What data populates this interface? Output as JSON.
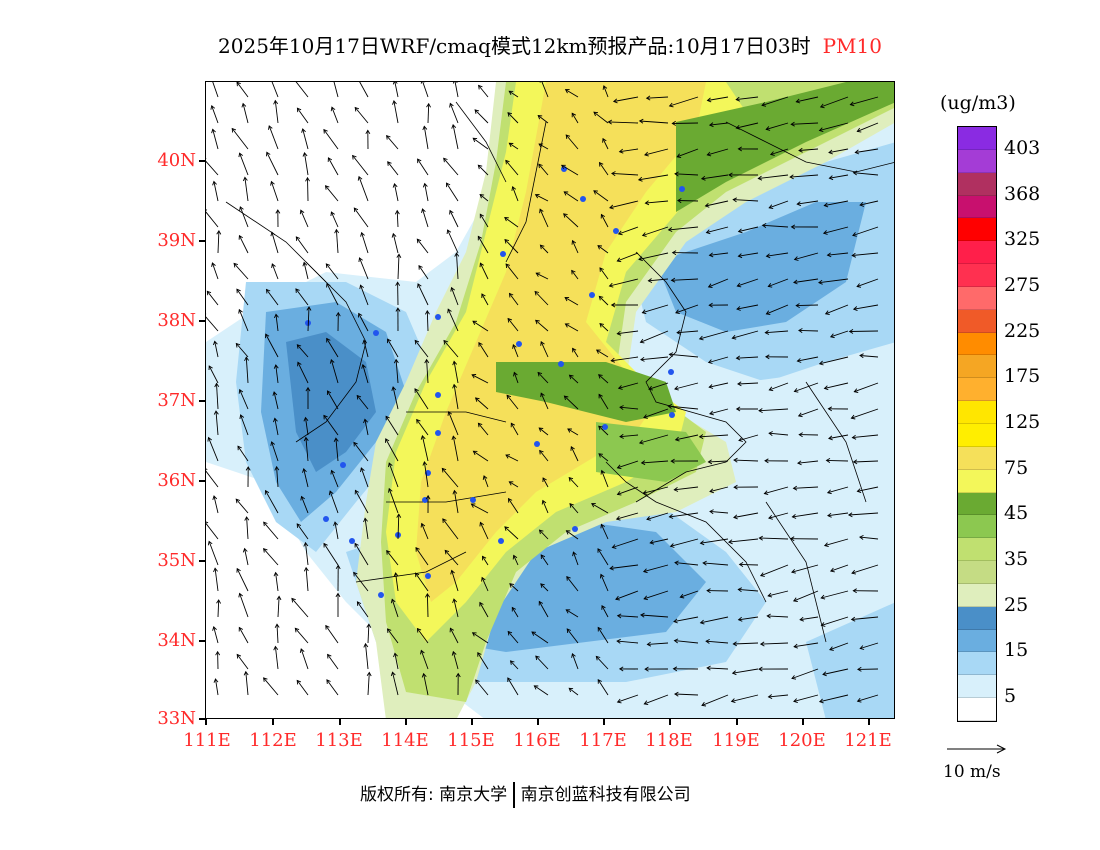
{
  "title": {
    "main": "2025年10月17日WRF/cmaq模式12km预报产品:10月17日03时",
    "pollutant": "PM10",
    "pollutant_color": "#ff2a2a"
  },
  "axes": {
    "y_labels": [
      "40N",
      "39N",
      "38N",
      "37N",
      "36N",
      "35N",
      "34N",
      "33N"
    ],
    "x_labels": [
      "111E",
      "112E",
      "113E",
      "114E",
      "115E",
      "116E",
      "117E",
      "118E",
      "119E",
      "120E",
      "121E"
    ],
    "lat_range": [
      33,
      41
    ],
    "lon_range": [
      111,
      121.4
    ]
  },
  "colorbar": {
    "unit": "(ug/m3)",
    "colors": [
      "#8a2be2",
      "#a43cd6",
      "#b03060",
      "#c8106e",
      "#ff0000",
      "#ff1f4a",
      "#ff3050",
      "#ff6a6a",
      "#f05a28",
      "#ff8c00",
      "#f5a623",
      "#ffb02e",
      "#ffe600",
      "#ffee00",
      "#f5e05a",
      "#f3f75a",
      "#6aaa32",
      "#8cc850",
      "#c0e070",
      "#c5dc84",
      "#dfeebd",
      "#4a8fc8",
      "#6aaee0",
      "#a8d8f5",
      "#d8f0fb",
      "#ffffff"
    ],
    "labels": [
      "403",
      "368",
      "325",
      "275",
      "225",
      "175",
      "125",
      "75",
      "45",
      "35",
      "25",
      "15",
      "5"
    ]
  },
  "wind_reference": {
    "label": "10 m/s"
  },
  "footer": {
    "left": "版权所有: 南京大学",
    "right": "南京创蓝科技有限公司"
  }
}
